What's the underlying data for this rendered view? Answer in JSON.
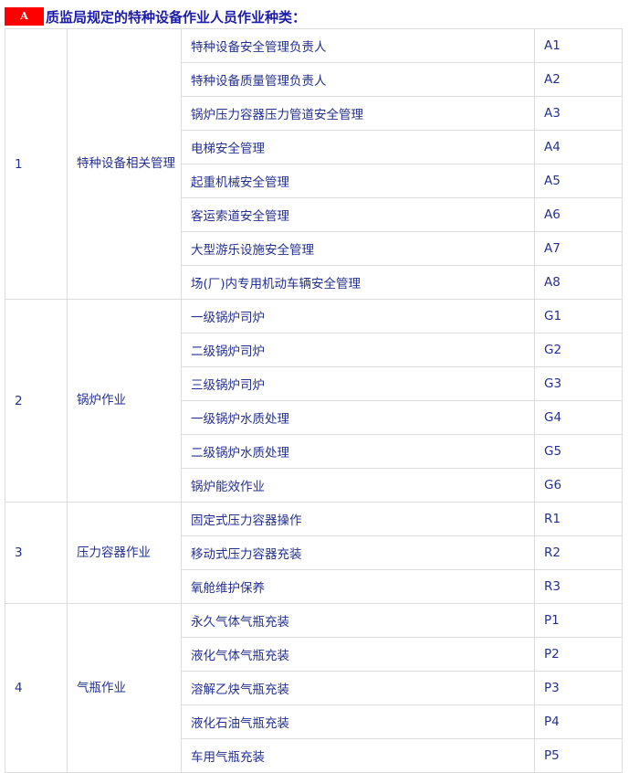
{
  "title": {
    "badge": "A",
    "text": "质监局规定的特种设备作业人员作业种类："
  },
  "groups": [
    {
      "no": "1",
      "category": "特种设备相关管理",
      "items": [
        {
          "name": "特种设备安全管理负责人",
          "code": "A1"
        },
        {
          "name": "特种设备质量管理负责人",
          "code": "A2"
        },
        {
          "name": "锅炉压力容器压力管道安全管理",
          "code": "A3"
        },
        {
          "name": "电梯安全管理",
          "code": "A4"
        },
        {
          "name": "起重机械安全管理",
          "code": "A5"
        },
        {
          "name": "客运索道安全管理",
          "code": "A6"
        },
        {
          "name": "大型游乐设施安全管理",
          "code": "A7"
        },
        {
          "name": "场(厂)内专用机动车辆安全管理",
          "code": "A8"
        }
      ]
    },
    {
      "no": "2",
      "category": "锅炉作业",
      "items": [
        {
          "name": "一级锅炉司炉",
          "code": "G1"
        },
        {
          "name": "二级锅炉司炉",
          "code": "G2"
        },
        {
          "name": "三级锅炉司炉",
          "code": "G3"
        },
        {
          "name": "一级锅炉水质处理",
          "code": "G4"
        },
        {
          "name": "二级锅炉水质处理",
          "code": "G5"
        },
        {
          "name": "锅炉能效作业",
          "code": "G6"
        }
      ]
    },
    {
      "no": "3",
      "category": "压力容器作业",
      "items": [
        {
          "name": "固定式压力容器操作",
          "code": "R1"
        },
        {
          "name": "移动式压力容器充装",
          "code": "R2"
        },
        {
          "name": "氧舱维护保养",
          "code": "R3"
        }
      ]
    },
    {
      "no": "4",
      "category": "气瓶作业",
      "items": [
        {
          "name": "永久气体气瓶充装",
          "code": "P1"
        },
        {
          "name": "液化气体气瓶充装",
          "code": "P2"
        },
        {
          "name": "溶解乙炔气瓶充装",
          "code": "P3"
        },
        {
          "name": "液化石油气瓶充装",
          "code": "P4"
        },
        {
          "name": "车用气瓶充装",
          "code": "P5"
        }
      ]
    }
  ]
}
